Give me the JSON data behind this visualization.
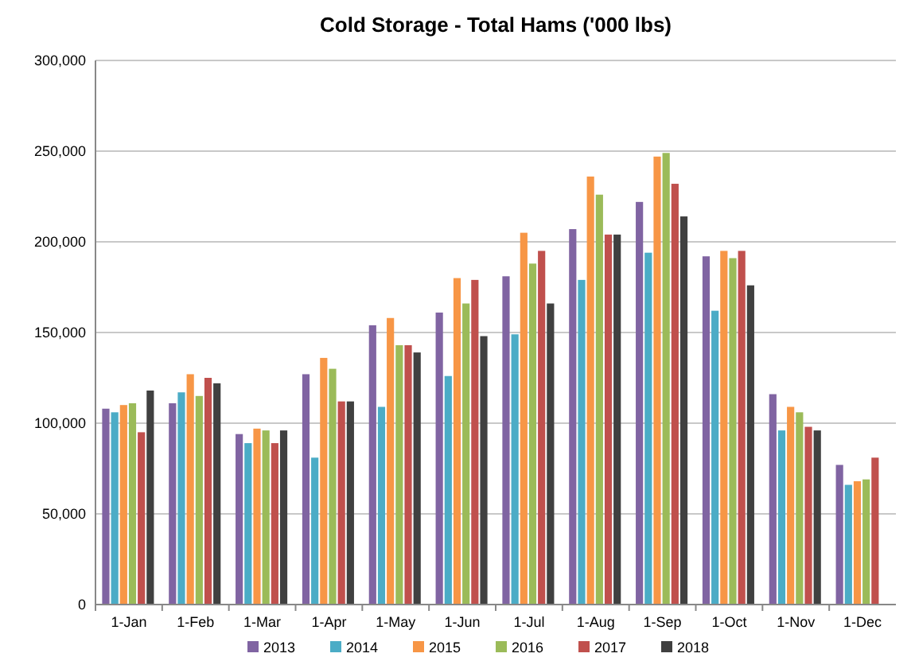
{
  "chart_data": {
    "type": "bar",
    "title": "Cold Storage - Total Hams ('000 lbs)",
    "categories": [
      "1-Jan",
      "1-Feb",
      "1-Mar",
      "1-Apr",
      "1-May",
      "1-Jun",
      "1-Jul",
      "1-Aug",
      "1-Sep",
      "1-Oct",
      "1-Nov",
      "1-Dec"
    ],
    "series": [
      {
        "name": "2013",
        "color": "#8064a2",
        "values": [
          108000,
          111000,
          94000,
          127000,
          154000,
          161000,
          181000,
          207000,
          222000,
          192000,
          116000,
          77000
        ]
      },
      {
        "name": "2014",
        "color": "#4bacc6",
        "values": [
          106000,
          117000,
          89000,
          81000,
          109000,
          126000,
          149000,
          179000,
          194000,
          162000,
          96000,
          66000
        ]
      },
      {
        "name": "2015",
        "color": "#f79646",
        "values": [
          110000,
          127000,
          97000,
          136000,
          158000,
          180000,
          205000,
          236000,
          247000,
          195000,
          109000,
          68000
        ]
      },
      {
        "name": "2016",
        "color": "#9bbb59",
        "values": [
          111000,
          115000,
          96000,
          130000,
          143000,
          166000,
          188000,
          226000,
          249000,
          191000,
          106000,
          69000
        ]
      },
      {
        "name": "2017",
        "color": "#c0504d",
        "values": [
          95000,
          125000,
          89000,
          112000,
          143000,
          179000,
          195000,
          204000,
          232000,
          195000,
          98000,
          81000
        ]
      },
      {
        "name": "2018",
        "color": "#404040",
        "values": [
          118000,
          122000,
          96000,
          112000,
          139000,
          148000,
          166000,
          204000,
          214000,
          176000,
          96000,
          null
        ]
      }
    ],
    "ylim": [
      0,
      300000
    ],
    "yticks": [
      {
        "value": 0,
        "label": "0"
      },
      {
        "value": 50000,
        "label": "50,000"
      },
      {
        "value": 100000,
        "label": "100,000"
      },
      {
        "value": 150000,
        "label": "150,000"
      },
      {
        "value": 200000,
        "label": "200,000"
      },
      {
        "value": 250000,
        "label": "250,000"
      },
      {
        "value": 300000,
        "label": "300,000"
      }
    ],
    "grid": "y",
    "legend": "bottom"
  }
}
